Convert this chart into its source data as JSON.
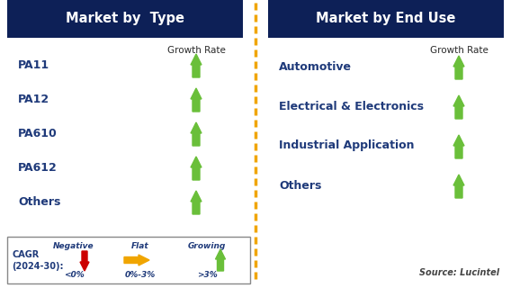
{
  "left_title": "Market by  Type",
  "right_title": "Market by End Use",
  "header_bg": "#0d2057",
  "header_text_color": "#ffffff",
  "left_items": [
    "PA11",
    "PA12",
    "PA610",
    "PA612",
    "Others"
  ],
  "right_items": [
    "Automotive",
    "Electrical & Electronics",
    "Industrial Application",
    "Others"
  ],
  "item_text_color": "#1f3a7a",
  "growth_rate_label": "Growth Rate",
  "growth_rate_color": "#2a2a2a",
  "arrow_color_green": "#6abf3a",
  "arrow_color_red": "#cc0000",
  "arrow_color_yellow": "#f0a500",
  "legend_cagr_line1": "CAGR",
  "legend_cagr_line2": "(2024-30):",
  "legend_negative_label": "Negative",
  "legend_negative_sub": "<0%",
  "legend_flat_label": "Flat",
  "legend_flat_sub": "0%-3%",
  "legend_growing_label": "Growing",
  "legend_growing_sub": ">3%",
  "source_text": "Source: Lucintel",
  "divider_color": "#f0a500",
  "bg_color": "#ffffff"
}
